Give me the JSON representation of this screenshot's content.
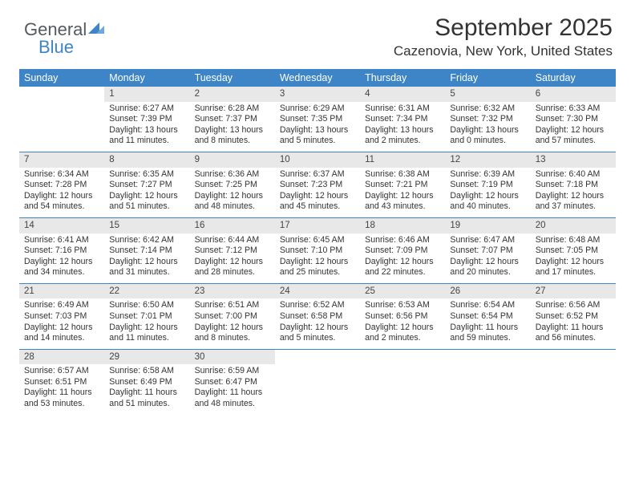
{
  "logo": {
    "word1": "General",
    "word2": "Blue"
  },
  "title": "September 2025",
  "location": "Cazenovia, New York, United States",
  "colors": {
    "header_bg": "#3d85c6",
    "header_fg": "#ffffff",
    "daynum_bg": "#e8e8e8",
    "row_divider": "#3d85c6",
    "text": "#333333",
    "logo_gray": "#555a5f",
    "logo_blue": "#3d85c6"
  },
  "typography": {
    "title_fontsize": 30,
    "subtitle_fontsize": 17,
    "header_fontsize": 12.5,
    "cell_fontsize": 10.6
  },
  "day_headers": [
    "Sunday",
    "Monday",
    "Tuesday",
    "Wednesday",
    "Thursday",
    "Friday",
    "Saturday"
  ],
  "weeks": [
    [
      {
        "blank": true
      },
      {
        "n": "1",
        "sr": "6:27 AM",
        "ss": "7:39 PM",
        "d1": "Daylight: 13 hours",
        "d2": "and 11 minutes."
      },
      {
        "n": "2",
        "sr": "6:28 AM",
        "ss": "7:37 PM",
        "d1": "Daylight: 13 hours",
        "d2": "and 8 minutes."
      },
      {
        "n": "3",
        "sr": "6:29 AM",
        "ss": "7:35 PM",
        "d1": "Daylight: 13 hours",
        "d2": "and 5 minutes."
      },
      {
        "n": "4",
        "sr": "6:31 AM",
        "ss": "7:34 PM",
        "d1": "Daylight: 13 hours",
        "d2": "and 2 minutes."
      },
      {
        "n": "5",
        "sr": "6:32 AM",
        "ss": "7:32 PM",
        "d1": "Daylight: 13 hours",
        "d2": "and 0 minutes."
      },
      {
        "n": "6",
        "sr": "6:33 AM",
        "ss": "7:30 PM",
        "d1": "Daylight: 12 hours",
        "d2": "and 57 minutes."
      }
    ],
    [
      {
        "n": "7",
        "sr": "6:34 AM",
        "ss": "7:28 PM",
        "d1": "Daylight: 12 hours",
        "d2": "and 54 minutes."
      },
      {
        "n": "8",
        "sr": "6:35 AM",
        "ss": "7:27 PM",
        "d1": "Daylight: 12 hours",
        "d2": "and 51 minutes."
      },
      {
        "n": "9",
        "sr": "6:36 AM",
        "ss": "7:25 PM",
        "d1": "Daylight: 12 hours",
        "d2": "and 48 minutes."
      },
      {
        "n": "10",
        "sr": "6:37 AM",
        "ss": "7:23 PM",
        "d1": "Daylight: 12 hours",
        "d2": "and 45 minutes."
      },
      {
        "n": "11",
        "sr": "6:38 AM",
        "ss": "7:21 PM",
        "d1": "Daylight: 12 hours",
        "d2": "and 43 minutes."
      },
      {
        "n": "12",
        "sr": "6:39 AM",
        "ss": "7:19 PM",
        "d1": "Daylight: 12 hours",
        "d2": "and 40 minutes."
      },
      {
        "n": "13",
        "sr": "6:40 AM",
        "ss": "7:18 PM",
        "d1": "Daylight: 12 hours",
        "d2": "and 37 minutes."
      }
    ],
    [
      {
        "n": "14",
        "sr": "6:41 AM",
        "ss": "7:16 PM",
        "d1": "Daylight: 12 hours",
        "d2": "and 34 minutes."
      },
      {
        "n": "15",
        "sr": "6:42 AM",
        "ss": "7:14 PM",
        "d1": "Daylight: 12 hours",
        "d2": "and 31 minutes."
      },
      {
        "n": "16",
        "sr": "6:44 AM",
        "ss": "7:12 PM",
        "d1": "Daylight: 12 hours",
        "d2": "and 28 minutes."
      },
      {
        "n": "17",
        "sr": "6:45 AM",
        "ss": "7:10 PM",
        "d1": "Daylight: 12 hours",
        "d2": "and 25 minutes."
      },
      {
        "n": "18",
        "sr": "6:46 AM",
        "ss": "7:09 PM",
        "d1": "Daylight: 12 hours",
        "d2": "and 22 minutes."
      },
      {
        "n": "19",
        "sr": "6:47 AM",
        "ss": "7:07 PM",
        "d1": "Daylight: 12 hours",
        "d2": "and 20 minutes."
      },
      {
        "n": "20",
        "sr": "6:48 AM",
        "ss": "7:05 PM",
        "d1": "Daylight: 12 hours",
        "d2": "and 17 minutes."
      }
    ],
    [
      {
        "n": "21",
        "sr": "6:49 AM",
        "ss": "7:03 PM",
        "d1": "Daylight: 12 hours",
        "d2": "and 14 minutes."
      },
      {
        "n": "22",
        "sr": "6:50 AM",
        "ss": "7:01 PM",
        "d1": "Daylight: 12 hours",
        "d2": "and 11 minutes."
      },
      {
        "n": "23",
        "sr": "6:51 AM",
        "ss": "7:00 PM",
        "d1": "Daylight: 12 hours",
        "d2": "and 8 minutes."
      },
      {
        "n": "24",
        "sr": "6:52 AM",
        "ss": "6:58 PM",
        "d1": "Daylight: 12 hours",
        "d2": "and 5 minutes."
      },
      {
        "n": "25",
        "sr": "6:53 AM",
        "ss": "6:56 PM",
        "d1": "Daylight: 12 hours",
        "d2": "and 2 minutes."
      },
      {
        "n": "26",
        "sr": "6:54 AM",
        "ss": "6:54 PM",
        "d1": "Daylight: 11 hours",
        "d2": "and 59 minutes."
      },
      {
        "n": "27",
        "sr": "6:56 AM",
        "ss": "6:52 PM",
        "d1": "Daylight: 11 hours",
        "d2": "and 56 minutes."
      }
    ],
    [
      {
        "n": "28",
        "sr": "6:57 AM",
        "ss": "6:51 PM",
        "d1": "Daylight: 11 hours",
        "d2": "and 53 minutes."
      },
      {
        "n": "29",
        "sr": "6:58 AM",
        "ss": "6:49 PM",
        "d1": "Daylight: 11 hours",
        "d2": "and 51 minutes."
      },
      {
        "n": "30",
        "sr": "6:59 AM",
        "ss": "6:47 PM",
        "d1": "Daylight: 11 hours",
        "d2": "and 48 minutes."
      },
      {
        "blank": true
      },
      {
        "blank": true
      },
      {
        "blank": true
      },
      {
        "blank": true
      }
    ]
  ],
  "labels": {
    "sunrise_prefix": "Sunrise: ",
    "sunset_prefix": "Sunset: "
  }
}
